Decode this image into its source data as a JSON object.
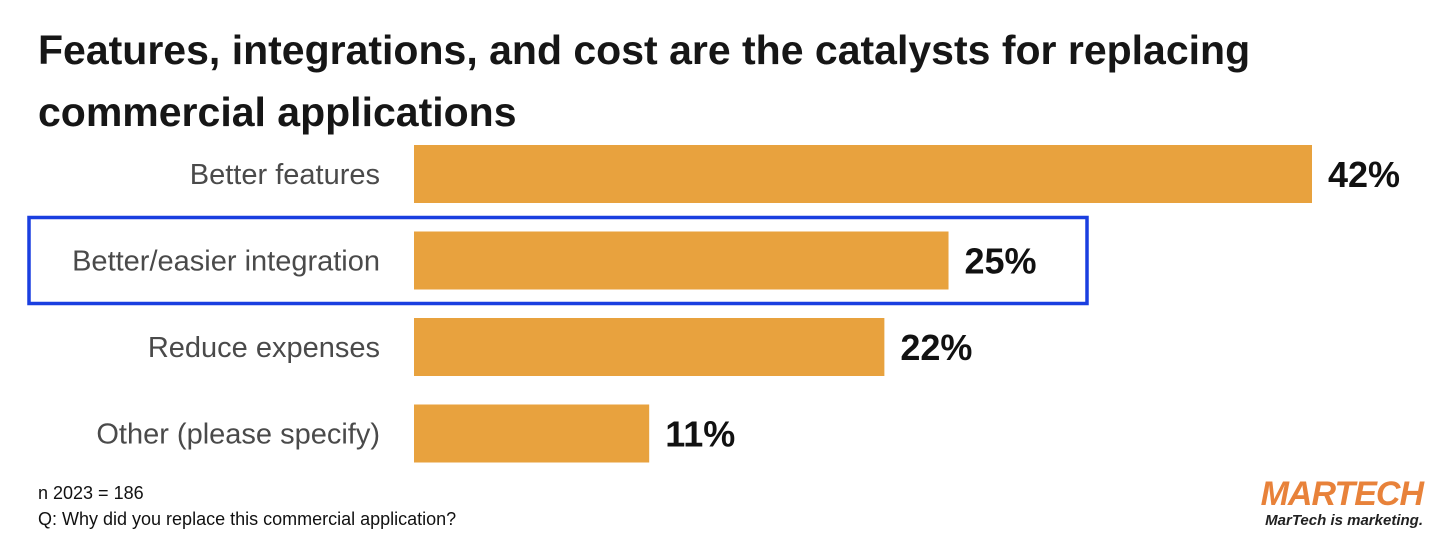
{
  "title": "Features, integrations, and cost are the catalysts for replacing commercial applications",
  "colors": {
    "bar": "#E8A23E",
    "highlight": "#1A3FE0",
    "text": "#4a4a4a"
  },
  "chart_data": {
    "type": "bar",
    "orientation": "horizontal",
    "categories": [
      "Better features",
      "Better/easier integration",
      "Reduce expenses",
      "Other (please specify)"
    ],
    "values": [
      42,
      25,
      22,
      11
    ],
    "value_labels": [
      "42%",
      "25%",
      "22%",
      "11%"
    ],
    "unit": "%",
    "highlighted_category": "Better/easier integration",
    "xlabel": "",
    "ylabel": "",
    "xlim": [
      0,
      42
    ],
    "grid": false,
    "legend": "none"
  },
  "footnote": {
    "sample": "n 2023 = 186",
    "question": "Q: Why did you replace this commercial application?"
  },
  "logo": {
    "mar": "MAR",
    "tech": "TECH",
    "tagline": "MarTech is marketing."
  }
}
